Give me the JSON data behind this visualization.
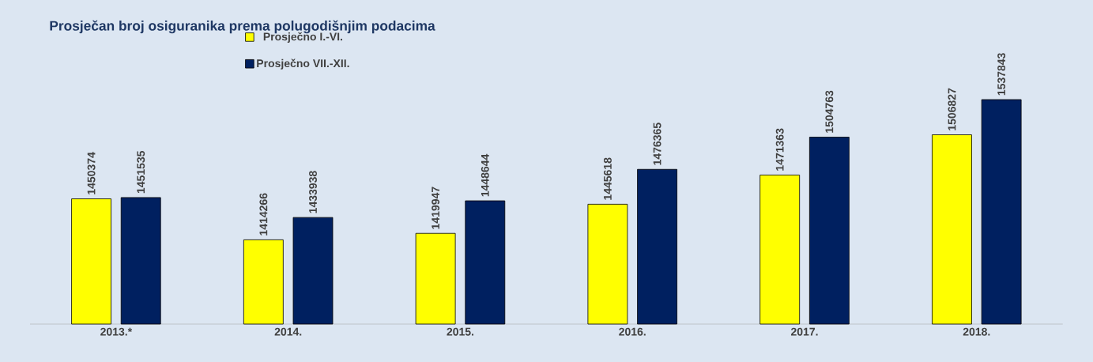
{
  "chart_data": {
    "type": "bar",
    "title": "Prosječan broj osiguranika prema polugodišnjim podacima",
    "categories": [
      "2013.*",
      "2014.",
      "2015.",
      "2016.",
      "2017.",
      "2018."
    ],
    "series": [
      {
        "name": "Prosječno I.-VI.",
        "color": "#ffff00",
        "values": [
          1450374,
          1414266,
          1419947,
          1445618,
          1471363,
          1506827
        ]
      },
      {
        "name": "Prosječno VII.-XII.",
        "color": "#002060",
        "values": [
          1451535,
          1433938,
          1448644,
          1476365,
          1504763,
          1537843
        ]
      }
    ],
    "ylim": [
      1340000,
      1537843
    ],
    "data_labels": true,
    "legend": "top left",
    "tick_labels": "x"
  }
}
